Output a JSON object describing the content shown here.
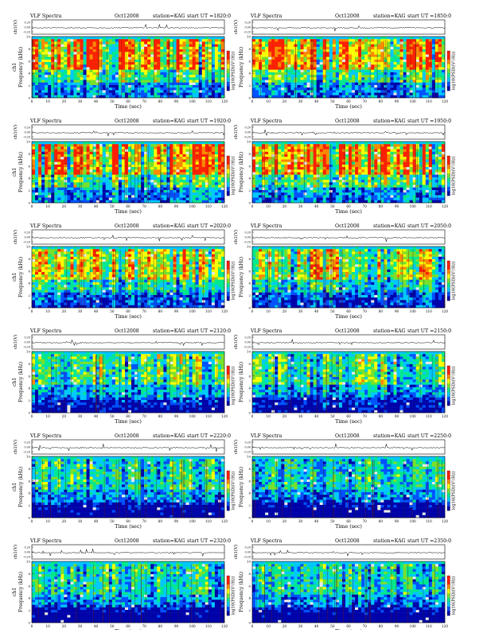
{
  "colors": {
    "scale": [
      "#0000aa",
      "#0050ff",
      "#00c8ff",
      "#00e890",
      "#7be02a",
      "#ffff00",
      "#ff8800",
      "#ff1e00",
      "#e8e8e8"
    ],
    "trace": "#000000",
    "background": "#ffffff"
  },
  "chart_data": [
    {
      "type": "heatmap",
      "header": {
        "left": "VLF Spectra",
        "date": "Oct12008",
        "station": "station=KAG",
        "start_ut": "start  UT  =1820:0"
      },
      "x": {
        "label": "Time (sec)",
        "range": [
          0,
          120
        ],
        "ticks": [
          "0",
          "10",
          "20",
          "30",
          "40",
          "50",
          "60",
          "70",
          "80",
          "90",
          "100",
          "110",
          "120"
        ]
      },
      "y": {
        "label": "Frequency (kHz)",
        "range": [
          0,
          10
        ],
        "ticks": [
          "0",
          "2",
          "4",
          "6",
          "8",
          "10"
        ]
      },
      "trace": {
        "label": "ch1(V)",
        "ticks": [
          "0.20",
          "0.00",
          "-0.20"
        ]
      },
      "channel_label": "ch1",
      "colorbar": {
        "label": "log10(PSD)(V²/Hz)"
      },
      "intensity": 0.8,
      "lowband": 0.35
    },
    {
      "type": "heatmap",
      "header": {
        "left": "VLF Spectra",
        "date": "Oct12008",
        "station": "station=KAG",
        "start_ut": "start  UT  =1850:0"
      },
      "x": {
        "label": "Time (sec)",
        "range": [
          0,
          120
        ],
        "ticks": [
          "0",
          "10",
          "20",
          "30",
          "40",
          "50",
          "60",
          "70",
          "80",
          "90",
          "100",
          "110",
          "120"
        ]
      },
      "y": {
        "label": "Frequency (kHz)",
        "range": [
          0,
          10
        ],
        "ticks": [
          "0",
          "2",
          "4",
          "6",
          "8",
          "10"
        ]
      },
      "trace": {
        "label": "ch1(V)",
        "ticks": [
          "0.20",
          "0.00",
          "-0.20"
        ]
      },
      "channel_label": "",
      "colorbar": {
        "label": "log10(PSD)(V²/Hz)"
      },
      "intensity": 0.8,
      "lowband": 0.35
    },
    {
      "type": "heatmap",
      "header": {
        "left": "VLF Spectra",
        "date": "Oct12008",
        "station": "station=KAG",
        "start_ut": "start  UT  =1920:0"
      },
      "x": {
        "label": "Time (sec)",
        "range": [
          0,
          120
        ],
        "ticks": [
          "0",
          "10",
          "20",
          "30",
          "40",
          "50",
          "60",
          "70",
          "80",
          "90",
          "100",
          "110",
          "120"
        ]
      },
      "y": {
        "label": "Frequency (kHz)",
        "range": [
          0,
          10
        ],
        "ticks": [
          "0",
          "2",
          "4",
          "6",
          "8",
          "10"
        ]
      },
      "trace": {
        "label": "ch1(V)",
        "ticks": [
          "0.20",
          "0.00",
          "-0.20"
        ]
      },
      "channel_label": "ch1",
      "colorbar": {
        "label": "log10(PSD)(V²/Hz)"
      },
      "intensity": 0.82,
      "lowband": 0.35
    },
    {
      "type": "heatmap",
      "header": {
        "left": "VLF Spectra",
        "date": "Oct12008",
        "station": "station=KAG",
        "start_ut": "start  UT  =1950:0"
      },
      "x": {
        "label": "Time (sec)",
        "range": [
          0,
          120
        ],
        "ticks": [
          "0",
          "10",
          "20",
          "30",
          "40",
          "50",
          "60",
          "70",
          "80",
          "90",
          "100",
          "110",
          "120"
        ]
      },
      "y": {
        "label": "Frequency (kHz)",
        "range": [
          0,
          10
        ],
        "ticks": [
          "0",
          "2",
          "4",
          "6",
          "8",
          "10"
        ]
      },
      "trace": {
        "label": "ch1(V)",
        "ticks": [
          "0.20",
          "0.00",
          "-0.20"
        ]
      },
      "channel_label": "",
      "colorbar": {
        "label": "log10(PSD)(V²/Hz)"
      },
      "intensity": 0.82,
      "lowband": 0.35
    },
    {
      "type": "heatmap",
      "header": {
        "left": "VLF Spectra",
        "date": "Oct12008",
        "station": "station=KAG",
        "start_ut": "start  UT  =2020:0"
      },
      "x": {
        "label": "Time (sec)",
        "range": [
          0,
          120
        ],
        "ticks": [
          "0",
          "10",
          "20",
          "30",
          "40",
          "50",
          "60",
          "70",
          "80",
          "90",
          "100",
          "110",
          "120"
        ]
      },
      "y": {
        "label": "Frequency (kHz)",
        "range": [
          0,
          10
        ],
        "ticks": [
          "0",
          "2",
          "4",
          "6",
          "8",
          "10"
        ]
      },
      "trace": {
        "label": "ch1(V)",
        "ticks": [
          "0.20",
          "0.00",
          "-0.20"
        ]
      },
      "channel_label": "ch1",
      "colorbar": {
        "label": "log10(PSD)(V²/Hz)"
      },
      "intensity": 0.65,
      "lowband": 0.3
    },
    {
      "type": "heatmap",
      "header": {
        "left": "VLF Spectra",
        "date": "Oct12008",
        "station": "station=KAG",
        "start_ut": "start  UT  =2050:0"
      },
      "x": {
        "label": "Time (sec)",
        "range": [
          0,
          120
        ],
        "ticks": [
          "0",
          "10",
          "20",
          "30",
          "40",
          "50",
          "60",
          "70",
          "80",
          "90",
          "100",
          "110",
          "120"
        ]
      },
      "y": {
        "label": "Frequency (kHz)",
        "range": [
          0,
          10
        ],
        "ticks": [
          "0",
          "2",
          "4",
          "6",
          "8",
          "10"
        ]
      },
      "trace": {
        "label": "ch1(V)",
        "ticks": [
          "0.20",
          "0.00",
          "-0.20"
        ]
      },
      "channel_label": "",
      "colorbar": {
        "label": "log10(PSD)(V²/Hz)"
      },
      "intensity": 0.62,
      "lowband": 0.3
    },
    {
      "type": "heatmap",
      "header": {
        "left": "VLF Spectra",
        "date": "Oct12008",
        "station": "station=KAG",
        "start_ut": "start  UT  =2120:0"
      },
      "x": {
        "label": "Time (sec)",
        "range": [
          0,
          120
        ],
        "ticks": [
          "0",
          "10",
          "20",
          "30",
          "40",
          "50",
          "60",
          "70",
          "80",
          "90",
          "100",
          "110",
          "120"
        ]
      },
      "y": {
        "label": "Frequency (kHz)",
        "range": [
          0,
          10
        ],
        "ticks": [
          "0",
          "2",
          "4",
          "6",
          "8",
          "10"
        ]
      },
      "trace": {
        "label": "ch1(V)",
        "ticks": [
          "0.20",
          "0.00",
          "-0.20"
        ]
      },
      "channel_label": "ch1",
      "colorbar": {
        "label": "log10(PSD)(V²/Hz)"
      },
      "intensity": 0.5,
      "lowband": 0.2
    },
    {
      "type": "heatmap",
      "header": {
        "left": "VLF Spectra",
        "date": "Oct12008",
        "station": "station=KAG",
        "start_ut": "start  UT  =2150:0"
      },
      "x": {
        "label": "Time (sec)",
        "range": [
          0,
          120
        ],
        "ticks": [
          "0",
          "10",
          "20",
          "30",
          "40",
          "50",
          "60",
          "70",
          "80",
          "90",
          "100",
          "110",
          "120"
        ]
      },
      "y": {
        "label": "Frequency (kHz)",
        "range": [
          0,
          10
        ],
        "ticks": [
          "0",
          "2",
          "4",
          "6",
          "8",
          "10"
        ]
      },
      "trace": {
        "label": "ch1(V)",
        "ticks": [
          "0.20",
          "0.00",
          "-0.20"
        ]
      },
      "channel_label": "",
      "colorbar": {
        "label": "log10(PSD)(V²/Hz)"
      },
      "intensity": 0.48,
      "lowband": 0.2
    },
    {
      "type": "heatmap",
      "header": {
        "left": "VLF Spectra",
        "date": "Oct12008",
        "station": "station=KAG",
        "start_ut": "start  UT  =2220:0"
      },
      "x": {
        "label": "Time (sec)",
        "range": [
          0,
          120
        ],
        "ticks": [
          "0",
          "10",
          "20",
          "30",
          "40",
          "50",
          "60",
          "70",
          "80",
          "90",
          "100",
          "110",
          "120"
        ]
      },
      "y": {
        "label": "Frequency (kHz)",
        "range": [
          0,
          10
        ],
        "ticks": [
          "0",
          "2",
          "4",
          "6",
          "8",
          "10"
        ]
      },
      "trace": {
        "label": "ch1(V)",
        "ticks": [
          "0.20",
          "0.00",
          "-0.20"
        ]
      },
      "channel_label": "ch1",
      "colorbar": {
        "label": "log10(PSD)(V²/Hz)"
      },
      "intensity": 0.42,
      "lowband": 0.15
    },
    {
      "type": "heatmap",
      "header": {
        "left": "VLF Spectra",
        "date": "Oct12008",
        "station": "station=KAG",
        "start_ut": "start  UT  =2250:0"
      },
      "x": {
        "label": "Time (sec)",
        "range": [
          0,
          120
        ],
        "ticks": [
          "0",
          "10",
          "20",
          "30",
          "40",
          "50",
          "60",
          "70",
          "80",
          "90",
          "100",
          "110",
          "120"
        ]
      },
      "y": {
        "label": "Frequency (kHz)",
        "range": [
          0,
          10
        ],
        "ticks": [
          "0",
          "2",
          "4",
          "6",
          "8",
          "10"
        ]
      },
      "trace": {
        "label": "ch1(V)",
        "ticks": [
          "0.20",
          "0.00",
          "-0.20"
        ]
      },
      "channel_label": "",
      "colorbar": {
        "label": "log10(PSD)(V²/Hz)"
      },
      "intensity": 0.35,
      "lowband": 0.08
    },
    {
      "type": "heatmap",
      "header": {
        "left": "VLF Spectra",
        "date": "Oct12008",
        "station": "station=KAG",
        "start_ut": "start  UT  =2320:0"
      },
      "x": {
        "label": "Time (sec)",
        "range": [
          0,
          120
        ],
        "ticks": [
          "0",
          "10",
          "20",
          "30",
          "40",
          "50",
          "60",
          "70",
          "80",
          "90",
          "100",
          "110",
          "120"
        ]
      },
      "y": {
        "label": "Frequency (kHz)",
        "range": [
          0,
          10
        ],
        "ticks": [
          "0",
          "2",
          "4",
          "6",
          "8",
          "10"
        ]
      },
      "trace": {
        "label": "ch1(V)",
        "ticks": [
          "0.20",
          "0.00",
          "-0.20"
        ]
      },
      "channel_label": "ch1",
      "colorbar": {
        "label": "log10(PSD)(V²/Hz)"
      },
      "intensity": 0.4,
      "lowband": 0.1
    },
    {
      "type": "heatmap",
      "header": {
        "left": "VLF Spectra",
        "date": "Oct12008",
        "station": "station=KAG",
        "start_ut": "start  UT  =2350:0"
      },
      "x": {
        "label": "Time (sec)",
        "range": [
          0,
          120
        ],
        "ticks": [
          "0",
          "10",
          "20",
          "30",
          "40",
          "50",
          "60",
          "70",
          "80",
          "90",
          "100",
          "110",
          "120"
        ]
      },
      "y": {
        "label": "Frequency (kHz)",
        "range": [
          0,
          10
        ],
        "ticks": [
          "0",
          "2",
          "4",
          "6",
          "8",
          "10"
        ]
      },
      "trace": {
        "label": "ch1(V)",
        "ticks": [
          "0.20",
          "0.00",
          "-0.20"
        ]
      },
      "channel_label": "",
      "colorbar": {
        "label": "log10(PSD)(V²/Hz)"
      },
      "intensity": 0.38,
      "lowband": 0.08
    }
  ]
}
